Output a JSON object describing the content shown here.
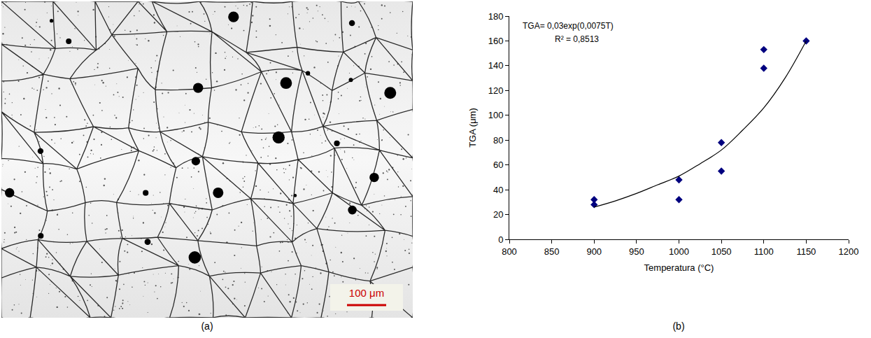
{
  "panel_labels": [
    "(a)",
    "(b)"
  ],
  "micrograph": {
    "scale_bar": "100 μm"
  },
  "chart_data": {
    "type": "scatter",
    "xlabel": "Temperatura (°C)",
    "ylabel": "TGA (μm)",
    "annotations": [
      "TGA= 0,03exp(0,0075T)",
      "R² = 0,8513"
    ],
    "xlim": [
      800,
      1200
    ],
    "xticks": [
      800,
      850,
      900,
      950,
      1000,
      1050,
      1100,
      1150,
      1200
    ],
    "ylim": [
      0,
      180
    ],
    "yticks": [
      0,
      20,
      40,
      60,
      80,
      100,
      120,
      140,
      160,
      180
    ],
    "grid": false,
    "series": [
      {
        "type": "scatter",
        "marker": "diamond",
        "color": "#00007f",
        "x": [
          900,
          900,
          1000,
          1000,
          1050,
          1050,
          1100,
          1100,
          1150
        ],
        "values": [
          32,
          28,
          48,
          32,
          78,
          55,
          153,
          138,
          160
        ]
      },
      {
        "type": "line",
        "line_style": "solid",
        "color": "#000000",
        "x": [
          900,
          925,
          950,
          975,
          1000,
          1025,
          1050,
          1075,
          1100,
          1125,
          1150
        ],
        "values": [
          26,
          31,
          37,
          44,
          51,
          61,
          72,
          88,
          106,
          130,
          160
        ]
      }
    ]
  }
}
